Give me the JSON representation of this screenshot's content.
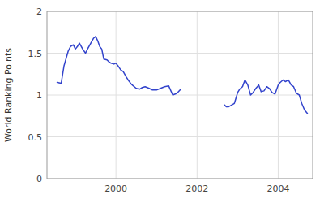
{
  "chart_data": {
    "type": "line",
    "ylabel": "World Ranking Points",
    "color": "#3344cc",
    "xlim": [
      1998.3,
      2004.85
    ],
    "ylim": [
      0,
      2
    ],
    "xticks": [
      2000,
      2002,
      2004
    ],
    "yticks": [
      0,
      0.5,
      1,
      1.5,
      2
    ],
    "grid": true,
    "series": [
      {
        "x": [
          1998.55,
          1998.65,
          1998.72,
          1998.82,
          1998.88,
          1998.95,
          1999.0,
          1999.05,
          1999.1,
          1999.18,
          1999.25,
          1999.3,
          1999.38,
          1999.45,
          1999.5,
          1999.55,
          1999.6,
          1999.65,
          1999.7,
          1999.78,
          1999.82,
          1999.88,
          1999.95,
          2000.0,
          2000.05,
          2000.12,
          2000.18,
          2000.25,
          2000.3,
          2000.38,
          2000.45,
          2000.5,
          2000.58,
          2000.65,
          2000.72,
          2000.82,
          2000.9,
          2001.0,
          2001.1,
          2001.2,
          2001.3,
          2001.4,
          2001.5,
          2001.6
        ],
        "values": [
          1.15,
          1.14,
          1.35,
          1.52,
          1.58,
          1.6,
          1.55,
          1.58,
          1.62,
          1.55,
          1.5,
          1.55,
          1.62,
          1.68,
          1.7,
          1.65,
          1.58,
          1.55,
          1.43,
          1.42,
          1.4,
          1.38,
          1.37,
          1.38,
          1.35,
          1.3,
          1.28,
          1.22,
          1.18,
          1.13,
          1.1,
          1.08,
          1.07,
          1.09,
          1.1,
          1.08,
          1.06,
          1.06,
          1.08,
          1.1,
          1.11,
          1.0,
          1.02,
          1.07
        ]
      },
      {
        "x": [
          2002.68,
          2002.72,
          2002.78,
          2002.85,
          2002.92,
          2003.0,
          2003.05,
          2003.12,
          2003.18,
          2003.25,
          2003.32,
          2003.38,
          2003.45,
          2003.52,
          2003.58,
          2003.65,
          2003.72,
          2003.78,
          2003.85,
          2003.92,
          2004.0,
          2004.05,
          2004.12,
          2004.18,
          2004.25,
          2004.32,
          2004.38,
          2004.45,
          2004.52,
          2004.58,
          2004.65,
          2004.72
        ],
        "values": [
          0.88,
          0.86,
          0.86,
          0.88,
          0.9,
          1.03,
          1.07,
          1.1,
          1.18,
          1.12,
          1.0,
          1.03,
          1.08,
          1.12,
          1.04,
          1.05,
          1.1,
          1.08,
          1.03,
          1.01,
          1.12,
          1.15,
          1.18,
          1.16,
          1.18,
          1.12,
          1.1,
          1.02,
          1.0,
          0.9,
          0.82,
          0.78
        ]
      }
    ]
  }
}
